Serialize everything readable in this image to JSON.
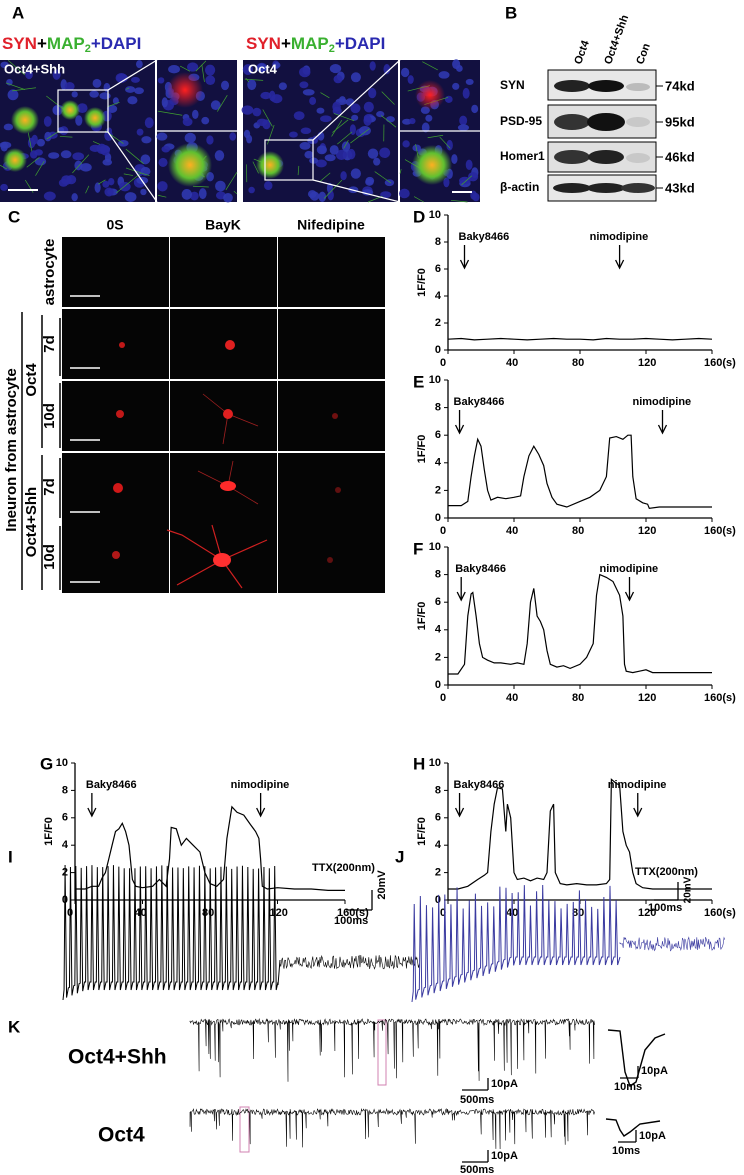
{
  "panel_a": {
    "label": "A",
    "headings": [
      [
        "SYN",
        "+",
        "MAP",
        "2",
        "+DAPI"
      ],
      [
        "SYN",
        "+",
        "MAP",
        "2",
        "+DAPI"
      ]
    ],
    "image_labels": [
      "Oct4+Shh",
      "Oct4"
    ]
  },
  "panel_b": {
    "label": "B",
    "lanes": [
      "Oct4",
      "Oct4+Shh",
      "Con"
    ],
    "proteins": [
      "SYN",
      "PSD-95",
      "Homer1",
      "β-actin"
    ],
    "sizes": [
      "74kd",
      "95kd",
      "46kd",
      "43kd"
    ]
  },
  "panel_c": {
    "label": "C",
    "conditions": [
      "0S",
      "BayK",
      "Nifedipine"
    ],
    "astrocyte": "astrocyte",
    "neuron": "Ineuron from astrocyte",
    "groups": [
      "Oct4",
      "Oct4+Shh"
    ],
    "days": [
      "7d",
      "10d",
      "7d",
      "10d"
    ]
  },
  "chart_data": [
    {
      "type": "line",
      "label": "D",
      "ylabel": "1F/F0",
      "color": "#000000",
      "x": [
        0,
        8,
        16,
        24,
        32,
        40,
        48,
        56,
        64,
        72,
        80,
        88,
        96,
        104,
        112,
        120,
        128,
        136,
        144,
        152,
        160
      ],
      "values": [
        0.8,
        0.85,
        0.75,
        0.8,
        0.85,
        0.8,
        0.75,
        0.8,
        0.85,
        0.8,
        0.8,
        0.75,
        0.85,
        0.8,
        0.8,
        0.85,
        0.8,
        0.75,
        0.8,
        0.85,
        0.8
      ],
      "xlim": [
        0,
        160
      ],
      "ylim": [
        0,
        10
      ],
      "xticks": [
        0,
        40,
        80,
        120,
        {
          "value": 160,
          "label": "160(s)"
        }
      ],
      "yticks": [
        0,
        2,
        4,
        6,
        8,
        10
      ],
      "annotations": [
        {
          "text": "Baky8466",
          "x": 10
        },
        {
          "text": "nimodipine",
          "x": 104
        }
      ]
    },
    {
      "type": "line",
      "label": "E",
      "ylabel": "1F/F0",
      "color": "#000000",
      "x": [
        0,
        8,
        12,
        14,
        16,
        18,
        20,
        22,
        24,
        26,
        30,
        35,
        40,
        44,
        46,
        49,
        52,
        55,
        58,
        60,
        63,
        66,
        72,
        80,
        86,
        92,
        96,
        98,
        102,
        106,
        109,
        111,
        112,
        114,
        118,
        121,
        122,
        128,
        140,
        150,
        160
      ],
      "values": [
        0.9,
        0.9,
        1.2,
        3,
        4.5,
        5.7,
        5.2,
        3.5,
        2,
        1.3,
        1.5,
        1.4,
        1.5,
        1.6,
        3,
        4.5,
        5.2,
        4.6,
        3.8,
        2.5,
        1.5,
        1,
        0.8,
        1.2,
        1.5,
        2,
        3,
        5.8,
        5.9,
        5.7,
        6,
        6,
        3,
        1.4,
        1.1,
        1,
        0.7,
        0.8,
        0.8,
        0.8,
        0.8
      ],
      "xlim": [
        0,
        160
      ],
      "ylim": [
        0,
        10
      ],
      "xticks": [
        0,
        40,
        80,
        120,
        {
          "value": 160,
          "label": "160(s)"
        }
      ],
      "yticks": [
        0,
        2,
        4,
        6,
        8,
        10
      ],
      "annotations": [
        {
          "text": "Baky8466",
          "x": 7
        },
        {
          "text": "nimodipine",
          "x": 130
        }
      ]
    },
    {
      "type": "line",
      "label": "F",
      "ylabel": "1F/F0",
      "color": "#000000",
      "x": [
        0,
        6,
        10,
        12,
        14,
        15,
        17,
        19,
        21,
        24,
        28,
        32,
        38,
        42,
        46,
        48,
        50,
        52,
        54,
        56,
        58,
        60,
        62,
        66,
        70,
        74,
        80,
        84,
        88,
        90,
        92,
        96,
        100,
        104,
        106,
        107,
        108,
        112,
        116,
        120,
        124,
        140,
        160
      ],
      "values": [
        0.8,
        0.8,
        1.5,
        5,
        6.6,
        6.7,
        5,
        3,
        2,
        1.8,
        1.6,
        1.6,
        1.5,
        1.6,
        1.5,
        3,
        6,
        7,
        5,
        4.6,
        4,
        2.5,
        1.5,
        1.3,
        1.4,
        1.2,
        1.5,
        2,
        3,
        6.5,
        8,
        7.8,
        7.5,
        6.5,
        5,
        1.5,
        1,
        0.9,
        1,
        1.1,
        0.9,
        0.9,
        0.9
      ],
      "xlim": [
        0,
        160
      ],
      "ylim": [
        0,
        10
      ],
      "xticks": [
        0,
        40,
        80,
        120,
        {
          "value": 160,
          "label": "160(s)"
        }
      ],
      "yticks": [
        0,
        2,
        4,
        6,
        8,
        10
      ],
      "annotations": [
        {
          "text": "Baky8466",
          "x": 8
        },
        {
          "text": "nimodipine",
          "x": 110
        }
      ]
    },
    {
      "type": "line",
      "label": "G",
      "ylabel": "1F/F0",
      "color": "#000000",
      "x": [
        0,
        6,
        10,
        14,
        16,
        18,
        20,
        22,
        24,
        26,
        28,
        30,
        32,
        34,
        36,
        40,
        46,
        50,
        54,
        56,
        57,
        60,
        63,
        66,
        70,
        74,
        77,
        80,
        84,
        88,
        90,
        93,
        96,
        100,
        104,
        107,
        109,
        110,
        111,
        114,
        120,
        130,
        140,
        150,
        160
      ],
      "values": [
        0.8,
        0.8,
        1,
        1,
        1.6,
        2,
        3,
        4,
        5,
        5.2,
        5.6,
        5,
        4,
        1.5,
        1,
        0.9,
        1,
        1.5,
        1,
        3,
        5.3,
        5.2,
        4,
        4.5,
        4,
        3.5,
        2,
        1.2,
        1,
        1.5,
        4.5,
        6.8,
        6.4,
        6.2,
        5.5,
        5,
        4.5,
        3,
        1,
        0.8,
        0.9,
        0.8,
        0.8,
        0.7,
        0.7
      ],
      "xlim": [
        0,
        160
      ],
      "ylim": [
        0,
        10
      ],
      "xticks": [
        0,
        40,
        80,
        120,
        {
          "value": 160,
          "label": "160(s)"
        }
      ],
      "yticks": [
        0,
        2,
        4,
        6,
        8,
        10
      ],
      "annotations": [
        {
          "text": "Baky8466",
          "x": 10
        },
        {
          "text": "nimodipine",
          "x": 110
        }
      ]
    },
    {
      "type": "line",
      "label": "H",
      "ylabel": "1F/F0",
      "color": "#000000",
      "x": [
        0,
        6,
        12,
        18,
        22,
        24,
        26,
        28,
        30,
        33,
        35,
        36,
        38,
        40,
        42,
        46,
        50,
        54,
        58,
        60,
        62,
        64,
        65,
        68,
        72,
        78,
        84,
        90,
        96,
        98,
        99,
        102,
        104,
        106,
        108,
        110,
        112,
        114,
        118,
        124,
        130,
        140,
        150,
        160
      ],
      "values": [
        0.8,
        0.8,
        1,
        1.5,
        1.8,
        2,
        5,
        7,
        8.2,
        8.1,
        5,
        7,
        6,
        2,
        1.5,
        1.6,
        1.4,
        1.6,
        1.5,
        2,
        6.5,
        7,
        2,
        1.2,
        1.1,
        1.2,
        1.1,
        1.1,
        1.2,
        1.5,
        8.8,
        8.5,
        8.4,
        5,
        4,
        3.5,
        2,
        1.2,
        0.9,
        0.8,
        0.8,
        0.8,
        0.8,
        0.8
      ],
      "xlim": [
        0,
        160
      ],
      "ylim": [
        0,
        10
      ],
      "xticks": [
        0,
        40,
        80,
        120,
        {
          "value": 160,
          "label": "160(s)"
        }
      ],
      "yticks": [
        0,
        2,
        4,
        6,
        8,
        10
      ],
      "annotations": [
        {
          "text": "Baky8466",
          "x": 7
        },
        {
          "text": "nimodipine",
          "x": 115
        }
      ]
    }
  ],
  "panel_i": {
    "label": "I",
    "ttx": "TTX(200nm)",
    "scale_v": "20mV",
    "scale_t": "100ms"
  },
  "panel_j": {
    "label": "J",
    "ttx": "TTX(200nm)",
    "scale_v": "20mV",
    "scale_t": "100ms"
  },
  "panel_k": {
    "label": "K",
    "rows": [
      {
        "name": "Oct4+Shh",
        "scale_i": "10pA",
        "scale_t": "500ms",
        "inset_i": "10pA",
        "inset_t": "10ms"
      },
      {
        "name": "Oct4",
        "scale_i": "10pA",
        "scale_t": "500ms",
        "inset_i": "10pA",
        "inset_t": "10ms"
      }
    ]
  }
}
